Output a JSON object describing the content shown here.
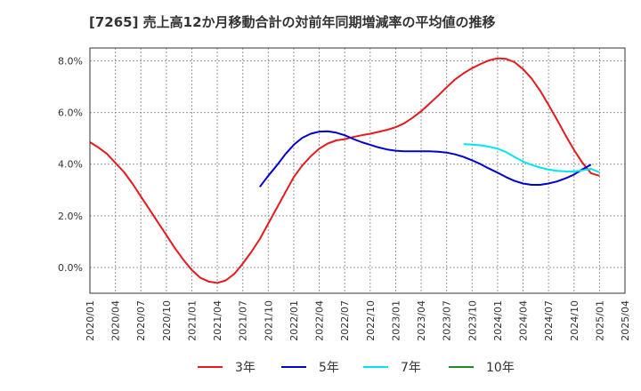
{
  "chart_data": {
    "type": "line",
    "title": "[7265]  売上高12か月移動合計の対前年同期増減率の平均値の推移",
    "xlabel": "",
    "ylabel": "",
    "ylim": [
      -1.0,
      8.5
    ],
    "yticks": [
      "0.0%",
      "2.0%",
      "4.0%",
      "6.0%",
      "8.0%"
    ],
    "ytick_values": [
      0,
      2,
      4,
      6,
      8
    ],
    "xlim": [
      "2020-01",
      "2025-04"
    ],
    "xticks": [
      "2020/01",
      "2020/04",
      "2020/07",
      "2020/10",
      "2021/01",
      "2021/04",
      "2021/07",
      "2021/10",
      "2022/01",
      "2022/04",
      "2022/07",
      "2022/10",
      "2023/01",
      "2023/04",
      "2023/07",
      "2023/10",
      "2024/01",
      "2024/04",
      "2024/07",
      "2024/10",
      "2025/01",
      "2025/04"
    ],
    "grid": true,
    "legend_position": "bottom",
    "series": [
      {
        "name": "3年",
        "color": "#e41a1c",
        "points": [
          [
            "2020-01",
            4.85
          ],
          [
            "2020-02",
            4.65
          ],
          [
            "2020-03",
            4.4
          ],
          [
            "2020-04",
            4.05
          ],
          [
            "2020-05",
            3.7
          ],
          [
            "2020-06",
            3.25
          ],
          [
            "2020-07",
            2.75
          ],
          [
            "2020-08",
            2.25
          ],
          [
            "2020-09",
            1.75
          ],
          [
            "2020-10",
            1.25
          ],
          [
            "2020-11",
            0.75
          ],
          [
            "2020-12",
            0.3
          ],
          [
            "2021-01",
            -0.1
          ],
          [
            "2021-02",
            -0.4
          ],
          [
            "2021-03",
            -0.55
          ],
          [
            "2021-04",
            -0.6
          ],
          [
            "2021-05",
            -0.5
          ],
          [
            "2021-06",
            -0.25
          ],
          [
            "2021-07",
            0.15
          ],
          [
            "2021-08",
            0.6
          ],
          [
            "2021-09",
            1.1
          ],
          [
            "2021-10",
            1.7
          ],
          [
            "2021-11",
            2.3
          ],
          [
            "2021-12",
            2.9
          ],
          [
            "2022-01",
            3.5
          ],
          [
            "2022-02",
            3.95
          ],
          [
            "2022-03",
            4.3
          ],
          [
            "2022-04",
            4.6
          ],
          [
            "2022-05",
            4.8
          ],
          [
            "2022-06",
            4.92
          ],
          [
            "2022-07",
            4.97
          ],
          [
            "2022-08",
            5.05
          ],
          [
            "2022-09",
            5.12
          ],
          [
            "2022-10",
            5.18
          ],
          [
            "2022-11",
            5.25
          ],
          [
            "2022-12",
            5.33
          ],
          [
            "2023-01",
            5.43
          ],
          [
            "2023-02",
            5.58
          ],
          [
            "2023-03",
            5.8
          ],
          [
            "2023-04",
            6.05
          ],
          [
            "2023-05",
            6.35
          ],
          [
            "2023-06",
            6.65
          ],
          [
            "2023-07",
            6.98
          ],
          [
            "2023-08",
            7.28
          ],
          [
            "2023-09",
            7.52
          ],
          [
            "2023-10",
            7.72
          ],
          [
            "2023-11",
            7.88
          ],
          [
            "2023-12",
            8.02
          ],
          [
            "2024-01",
            8.1
          ],
          [
            "2024-02",
            8.08
          ],
          [
            "2024-03",
            7.95
          ],
          [
            "2024-04",
            7.68
          ],
          [
            "2024-05",
            7.32
          ],
          [
            "2024-06",
            6.85
          ],
          [
            "2024-07",
            6.3
          ],
          [
            "2024-08",
            5.72
          ],
          [
            "2024-09",
            5.12
          ],
          [
            "2024-10",
            4.55
          ],
          [
            "2024-11",
            4.05
          ],
          [
            "2024-12",
            3.65
          ],
          [
            "2025-01",
            3.55
          ]
        ]
      },
      {
        "name": "5年",
        "color": "#0000cc",
        "points": [
          [
            "2021-09",
            3.12
          ],
          [
            "2021-10",
            3.55
          ],
          [
            "2021-11",
            3.95
          ],
          [
            "2021-12",
            4.38
          ],
          [
            "2022-01",
            4.75
          ],
          [
            "2022-02",
            5.02
          ],
          [
            "2022-03",
            5.18
          ],
          [
            "2022-04",
            5.26
          ],
          [
            "2022-05",
            5.27
          ],
          [
            "2022-06",
            5.22
          ],
          [
            "2022-07",
            5.12
          ],
          [
            "2022-08",
            4.98
          ],
          [
            "2022-09",
            4.85
          ],
          [
            "2022-10",
            4.75
          ],
          [
            "2022-11",
            4.65
          ],
          [
            "2022-12",
            4.57
          ],
          [
            "2023-01",
            4.52
          ],
          [
            "2023-02",
            4.5
          ],
          [
            "2023-03",
            4.5
          ],
          [
            "2023-04",
            4.5
          ],
          [
            "2023-05",
            4.5
          ],
          [
            "2023-06",
            4.48
          ],
          [
            "2023-07",
            4.45
          ],
          [
            "2023-08",
            4.38
          ],
          [
            "2023-09",
            4.28
          ],
          [
            "2023-10",
            4.15
          ],
          [
            "2023-11",
            4.0
          ],
          [
            "2023-12",
            3.83
          ],
          [
            "2024-01",
            3.67
          ],
          [
            "2024-02",
            3.5
          ],
          [
            "2024-03",
            3.35
          ],
          [
            "2024-04",
            3.25
          ],
          [
            "2024-05",
            3.2
          ],
          [
            "2024-06",
            3.2
          ],
          [
            "2024-07",
            3.25
          ],
          [
            "2024-08",
            3.33
          ],
          [
            "2024-09",
            3.45
          ],
          [
            "2024-10",
            3.6
          ],
          [
            "2024-11",
            3.8
          ],
          [
            "2024-12",
            3.98
          ]
        ]
      },
      {
        "name": "7年",
        "color": "#00e5ee",
        "points": [
          [
            "2023-09",
            4.78
          ],
          [
            "2023-10",
            4.76
          ],
          [
            "2023-11",
            4.73
          ],
          [
            "2023-12",
            4.68
          ],
          [
            "2024-01",
            4.6
          ],
          [
            "2024-02",
            4.47
          ],
          [
            "2024-03",
            4.28
          ],
          [
            "2024-04",
            4.1
          ],
          [
            "2024-05",
            3.97
          ],
          [
            "2024-06",
            3.87
          ],
          [
            "2024-07",
            3.79
          ],
          [
            "2024-08",
            3.74
          ],
          [
            "2024-09",
            3.72
          ],
          [
            "2024-10",
            3.72
          ],
          [
            "2024-11",
            3.76
          ],
          [
            "2024-12",
            3.82
          ],
          [
            "2025-01",
            3.68
          ]
        ]
      },
      {
        "name": "10年",
        "color": "#228b22",
        "points": []
      }
    ]
  }
}
